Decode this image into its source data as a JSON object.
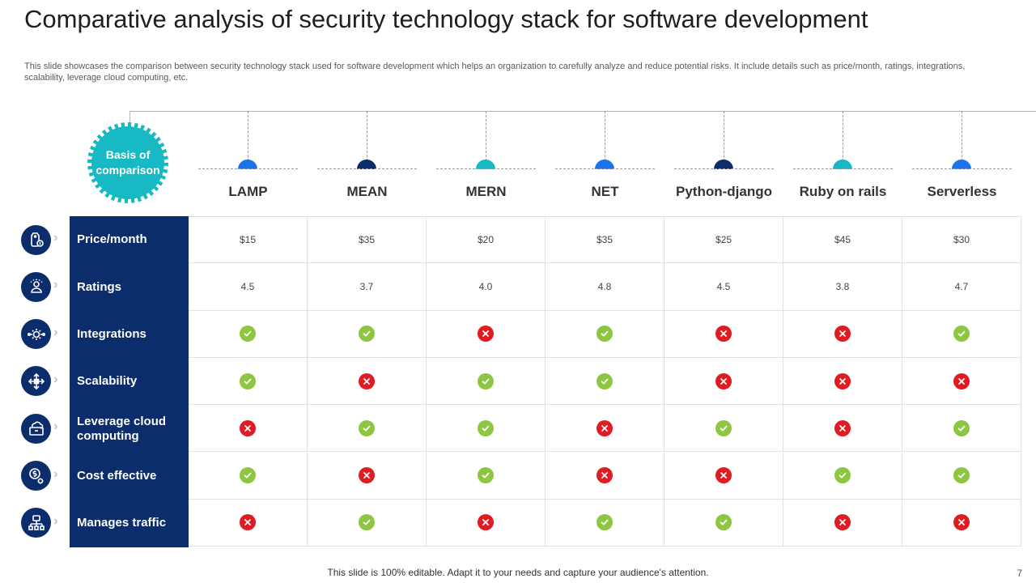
{
  "slide": {
    "title": "Comparative analysis of security technology stack for software development",
    "subtitle": "This slide showcases the comparison between security technology stack used for software development which helps an organization to carefully analyze and reduce potential risks. It include details such as price/month, ratings, integrations, scalability, leverage cloud computing, etc.",
    "footer": "This slide is 100% editable. Adapt it to your needs and capture your audience's attention.",
    "page_number": "7"
  },
  "basis_label": "Basis of comparison",
  "colors": {
    "navy": "#0b2d6b",
    "teal": "#17b9c4",
    "blue": "#1a73e8",
    "check": "#8dc641",
    "cross": "#e01b22"
  },
  "columns": [
    {
      "name": "LAMP",
      "dot_color": "#1a73e8"
    },
    {
      "name": "MEAN",
      "dot_color": "#0b2d6b"
    },
    {
      "name": "MERN",
      "dot_color": "#17b9c4"
    },
    {
      "name": "NET",
      "dot_color": "#1a73e8"
    },
    {
      "name": "Python-django",
      "dot_color": "#0b2d6b"
    },
    {
      "name": "Ruby on rails",
      "dot_color": "#17b9c4"
    },
    {
      "name": "Serverless",
      "dot_color": "#1a73e8"
    }
  ],
  "rows": [
    {
      "label": "Price/month",
      "icon": "price-tag-icon",
      "type": "text",
      "values": [
        "$15",
        "$35",
        "$20",
        "$35",
        "$25",
        "$45",
        "$30"
      ]
    },
    {
      "label": "Ratings",
      "icon": "rating-user-icon",
      "type": "text",
      "values": [
        "4.5",
        "3.7",
        "4.0",
        "4.8",
        "4.5",
        "3.8",
        "4.7"
      ]
    },
    {
      "label": "Integrations",
      "icon": "integration-gear-icon",
      "type": "check",
      "values": [
        true,
        true,
        false,
        true,
        false,
        false,
        true
      ]
    },
    {
      "label": "Scalability",
      "icon": "scalability-arrows-icon",
      "type": "check",
      "values": [
        true,
        false,
        true,
        true,
        false,
        false,
        false
      ]
    },
    {
      "label": "Leverage cloud computing",
      "icon": "cloud-computing-icon",
      "type": "check",
      "values": [
        false,
        true,
        true,
        false,
        true,
        false,
        true
      ]
    },
    {
      "label": "Cost effective",
      "icon": "cost-dollar-gear-icon",
      "type": "check",
      "values": [
        true,
        false,
        true,
        false,
        false,
        true,
        true
      ]
    },
    {
      "label": "Manages traffic",
      "icon": "traffic-network-icon",
      "type": "check",
      "values": [
        false,
        true,
        false,
        true,
        true,
        false,
        false
      ]
    }
  ]
}
